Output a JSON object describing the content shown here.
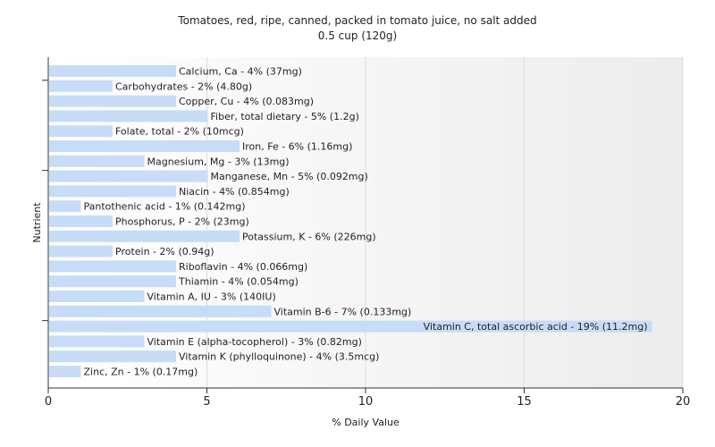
{
  "chart_data": {
    "type": "bar",
    "orientation": "horizontal",
    "title": "Tomatoes, red, ripe, canned, packed in tomato juice, no salt added",
    "subtitle": "0.5 cup (120g)",
    "xlabel": "% Daily Value",
    "ylabel": "Nutrient",
    "xlim": [
      0,
      20
    ],
    "xticks": [
      0,
      5,
      10,
      15,
      20
    ],
    "grid": true,
    "bar_color": "#c6dcf7",
    "categories": [
      "Calcium, Ca",
      "Carbohydrates",
      "Copper, Cu",
      "Fiber, total dietary",
      "Folate, total",
      "Iron, Fe",
      "Magnesium, Mg",
      "Manganese, Mn",
      "Niacin",
      "Pantothenic acid",
      "Phosphorus, P",
      "Potassium, K",
      "Protein",
      "Riboflavin",
      "Thiamin",
      "Vitamin A, IU",
      "Vitamin B-6",
      "Vitamin C, total ascorbic acid",
      "Vitamin E (alpha-tocopherol)",
      "Vitamin K (phylloquinone)",
      "Zinc, Zn"
    ],
    "values": [
      4,
      2,
      4,
      5,
      2,
      6,
      3,
      5,
      4,
      1,
      2,
      6,
      2,
      4,
      4,
      3,
      7,
      19,
      3,
      4,
      1
    ],
    "labels": [
      "Calcium, Ca - 4% (37mg)",
      "Carbohydrates - 2% (4.80g)",
      "Copper, Cu - 4% (0.083mg)",
      "Fiber, total dietary - 5% (1.2g)",
      "Folate, total - 2% (10mcg)",
      "Iron, Fe - 6% (1.16mg)",
      "Magnesium, Mg - 3% (13mg)",
      "Manganese, Mn - 5% (0.092mg)",
      "Niacin - 4% (0.854mg)",
      "Pantothenic acid - 1% (0.142mg)",
      "Phosphorus, P - 2% (23mg)",
      "Potassium, K - 6% (226mg)",
      "Protein - 2% (0.94g)",
      "Riboflavin - 4% (0.066mg)",
      "Thiamin - 4% (0.054mg)",
      "Vitamin A, IU - 3% (140IU)",
      "Vitamin B-6 - 7% (0.133mg)",
      "Vitamin C, total ascorbic acid - 19% (11.2mg)",
      "Vitamin E (alpha-tocopherol) - 3% (0.82mg)",
      "Vitamin K (phylloquinone) - 4% (3.5mcg)",
      "Zinc, Zn - 1% (0.17mg)"
    ]
  }
}
